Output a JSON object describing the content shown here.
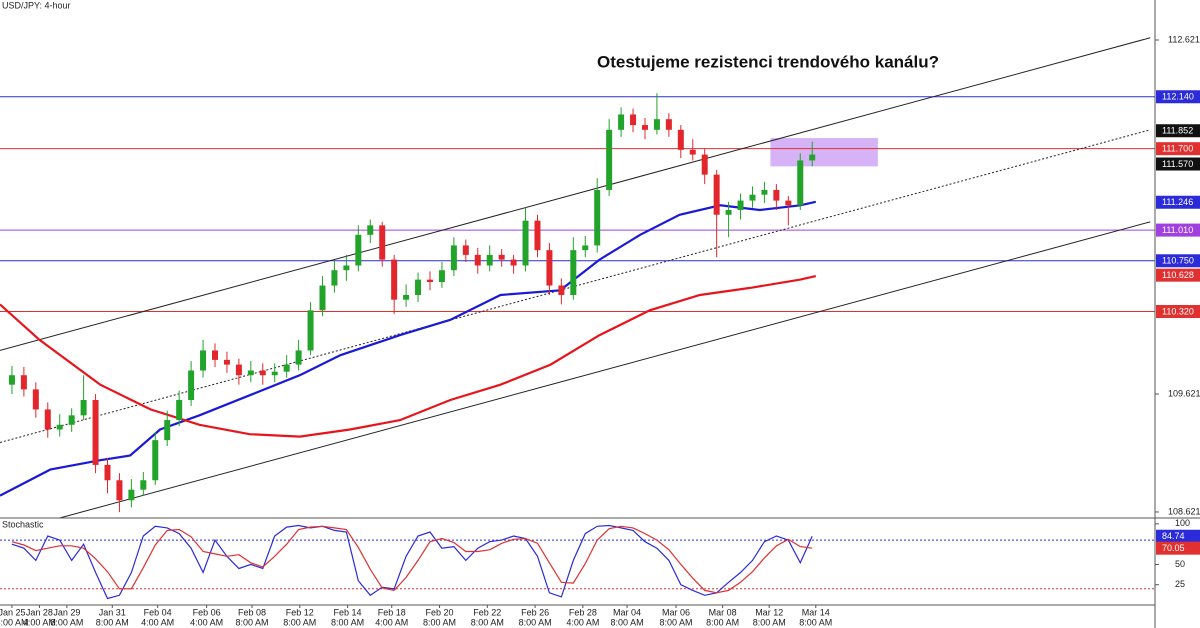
{
  "chart_data": [
    {
      "type": "candlestick",
      "title": "USD/JPY: 4-hour",
      "annotation": "Otestujeme rezistenci trendového kanálu?",
      "up_color": "#22a32a",
      "down_color": "#e3262c",
      "xlim": [
        -1,
        95.7
      ],
      "ylim": [
        108.57,
        112.96
      ],
      "yticks": [
        112.621,
        109.621,
        108.621
      ],
      "xticks": [
        {
          "value": 0,
          "label": "Jan 25",
          "time": "4:00 AM"
        },
        {
          "value": 2.3,
          "label": "Jan 28",
          "time": "4:00 AM"
        },
        {
          "value": 4.6,
          "label": "Jan 29",
          "time": "8:00 AM"
        },
        {
          "value": 8.4,
          "label": "Jan 31",
          "time": "8:00 AM"
        },
        {
          "value": 12.2,
          "label": "Feb 04",
          "time": "4:00 AM"
        },
        {
          "value": 16.3,
          "label": "Feb 06",
          "time": "4:00 AM"
        },
        {
          "value": 20.1,
          "label": "Feb 08",
          "time": "8:00 AM"
        },
        {
          "value": 24.1,
          "label": "Feb 12",
          "time": "8:00 AM"
        },
        {
          "value": 28.1,
          "label": "Feb 14",
          "time": "8:00 AM"
        },
        {
          "value": 31.8,
          "label": "Feb 18",
          "time": "4:00 AM"
        },
        {
          "value": 35.8,
          "label": "Feb 20",
          "time": "8:00 AM"
        },
        {
          "value": 39.8,
          "label": "Feb 22",
          "time": "8:00 AM"
        },
        {
          "value": 43.8,
          "label": "Feb 26",
          "time": "8:00 AM"
        },
        {
          "value": 47.8,
          "label": "Feb 28",
          "time": "4:00 AM"
        },
        {
          "value": 51.5,
          "label": "Mar 04",
          "time": "8:00 AM"
        },
        {
          "value": 55.6,
          "label": "Mar 06",
          "time": "8:00 AM"
        },
        {
          "value": 59.5,
          "label": "Mar 08",
          "time": "8:00 AM"
        },
        {
          "value": 63.4,
          "label": "Mar 12",
          "time": "8:00 AM"
        },
        {
          "value": 67.3,
          "label": "Mar 14",
          "time": "8:00 AM"
        }
      ],
      "candles": [
        [
          109.7,
          109.86,
          109.62,
          109.78
        ],
        [
          109.78,
          109.85,
          109.6,
          109.66
        ],
        [
          109.66,
          109.72,
          109.42,
          109.49
        ],
        [
          109.49,
          109.55,
          109.25,
          109.32
        ],
        [
          109.32,
          109.45,
          109.26,
          109.36
        ],
        [
          109.36,
          109.5,
          109.3,
          109.44
        ],
        [
          109.44,
          109.78,
          109.4,
          109.57
        ],
        [
          109.57,
          109.62,
          108.95,
          109.02
        ],
        [
          109.02,
          109.08,
          108.78,
          108.89
        ],
        [
          108.89,
          108.95,
          108.62,
          108.72
        ],
        [
          108.72,
          108.9,
          108.66,
          108.81
        ],
        [
          108.81,
          108.96,
          108.76,
          108.89
        ],
        [
          108.89,
          109.3,
          108.85,
          109.23
        ],
        [
          109.23,
          109.48,
          109.18,
          109.4
        ],
        [
          109.4,
          109.65,
          109.35,
          109.57
        ],
        [
          109.57,
          109.9,
          109.52,
          109.82
        ],
        [
          109.82,
          110.08,
          109.76,
          109.99
        ],
        [
          109.99,
          110.05,
          109.85,
          109.91
        ],
        [
          109.91,
          109.98,
          109.8,
          109.87
        ],
        [
          109.87,
          109.92,
          109.7,
          109.78
        ],
        [
          109.78,
          109.9,
          109.72,
          109.82
        ],
        [
          109.82,
          109.88,
          109.7,
          109.78
        ],
        [
          109.78,
          109.88,
          109.72,
          109.81
        ],
        [
          109.81,
          109.95,
          109.76,
          109.87
        ],
        [
          109.87,
          110.08,
          109.82,
          109.99
        ],
        [
          109.99,
          110.4,
          109.95,
          110.33
        ],
        [
          110.33,
          110.62,
          110.28,
          110.54
        ],
        [
          110.54,
          110.75,
          110.48,
          110.67
        ],
        [
          110.67,
          110.8,
          110.58,
          110.71
        ],
        [
          110.71,
          111.05,
          110.66,
          110.97
        ],
        [
          110.97,
          111.1,
          110.9,
          111.05
        ],
        [
          111.05,
          111.08,
          110.7,
          110.76
        ],
        [
          110.76,
          110.8,
          110.3,
          110.42
        ],
        [
          110.42,
          110.55,
          110.36,
          110.46
        ],
        [
          110.46,
          110.65,
          110.4,
          110.59
        ],
        [
          110.59,
          110.66,
          110.5,
          110.57
        ],
        [
          110.57,
          110.74,
          110.52,
          110.67
        ],
        [
          110.67,
          110.95,
          110.62,
          110.88
        ],
        [
          110.88,
          110.93,
          110.74,
          110.8
        ],
        [
          110.8,
          110.86,
          110.64,
          110.71
        ],
        [
          110.71,
          110.88,
          110.66,
          110.8
        ],
        [
          110.8,
          110.85,
          110.7,
          110.76
        ],
        [
          110.76,
          110.8,
          110.64,
          110.71
        ],
        [
          110.71,
          111.2,
          110.66,
          111.09
        ],
        [
          111.09,
          111.14,
          110.78,
          110.84
        ],
        [
          110.84,
          110.9,
          110.46,
          110.54
        ],
        [
          110.54,
          110.6,
          110.38,
          110.46
        ],
        [
          110.46,
          110.95,
          110.42,
          110.84
        ],
        [
          110.84,
          110.96,
          110.78,
          110.88
        ],
        [
          110.88,
          111.45,
          110.82,
          111.35
        ],
        [
          111.35,
          111.95,
          111.3,
          111.86
        ],
        [
          111.86,
          112.05,
          111.8,
          111.99
        ],
        [
          111.99,
          112.04,
          111.84,
          111.9
        ],
        [
          111.9,
          111.96,
          111.78,
          111.86
        ],
        [
          111.86,
          112.17,
          111.82,
          111.95
        ],
        [
          111.95,
          112.0,
          111.8,
          111.86
        ],
        [
          111.86,
          111.9,
          111.62,
          111.69
        ],
        [
          111.69,
          111.78,
          111.6,
          111.65
        ],
        [
          111.65,
          111.7,
          111.4,
          111.48
        ],
        [
          111.48,
          111.52,
          110.78,
          111.14
        ],
        [
          111.14,
          111.25,
          110.95,
          111.18
        ],
        [
          111.18,
          111.32,
          111.1,
          111.26
        ],
        [
          111.26,
          111.38,
          111.2,
          111.31
        ],
        [
          111.31,
          111.42,
          111.24,
          111.35
        ],
        [
          111.35,
          111.4,
          111.18,
          111.26
        ],
        [
          111.26,
          111.3,
          111.05,
          111.22
        ],
        [
          111.22,
          111.66,
          111.18,
          111.6
        ],
        [
          111.6,
          111.76,
          111.55,
          111.65
        ]
      ],
      "series": [
        {
          "color": "#1a1ad6",
          "x": [
            -1,
            3.2,
            7.4,
            9.9,
            12.4,
            15.7,
            19.9,
            24.1,
            27.5,
            32.5,
            36.7,
            40.9,
            45.9,
            49.2,
            52.6,
            55.9,
            59.3,
            62.6,
            66,
            67.3
          ],
          "values": [
            108.76,
            108.98,
            109.06,
            109.1,
            109.32,
            109.44,
            109.61,
            109.78,
            109.95,
            110.12,
            110.25,
            110.46,
            110.5,
            110.76,
            110.97,
            111.14,
            111.22,
            111.18,
            111.22,
            111.25
          ]
        },
        {
          "color": "#e8141c",
          "x": [
            -1,
            2.3,
            7.4,
            11.6,
            15.7,
            19.9,
            24.1,
            28.3,
            32.5,
            36.7,
            40.9,
            45.1,
            49.2,
            53.4,
            57.6,
            61.8,
            66,
            67.3
          ],
          "values": [
            110.38,
            110.08,
            109.7,
            109.49,
            109.36,
            109.28,
            109.26,
            109.32,
            109.4,
            109.57,
            109.7,
            109.87,
            110.12,
            110.33,
            110.46,
            110.52,
            110.59,
            110.62
          ]
        }
      ],
      "trendlines": [
        {
          "x": [
            -1,
            95.3
          ],
          "y": [
            109.99,
            112.64
          ],
          "color": "#222222",
          "dash": false
        },
        {
          "x": [
            -1,
            95.3
          ],
          "y": [
            109.21,
            111.86
          ],
          "color": "#222222",
          "dash": true
        },
        {
          "x": [
            4.0,
            95.3
          ],
          "y": [
            108.57,
            111.08
          ],
          "color": "#222222",
          "dash": false
        }
      ],
      "levels": [
        {
          "value": 112.14,
          "color": "#2b2bd9"
        },
        {
          "value": 111.7,
          "color": "#e03030"
        },
        {
          "value": 111.01,
          "color": "#a040e0"
        },
        {
          "value": 110.75,
          "color": "#2b2bd9"
        },
        {
          "value": 110.32,
          "color": "#e03030"
        }
      ],
      "zone": {
        "x": [
          63.5,
          72.5
        ],
        "y": [
          111.55,
          111.79
        ],
        "color": "#cfa6f5"
      },
      "price_labels": [
        {
          "value": 112.14,
          "label": "112.140",
          "color": "#2b2bd9"
        },
        {
          "value": 111.852,
          "color": "#111111"
        },
        {
          "value": 111.7,
          "label": "111.700",
          "color": "#e03030"
        },
        {
          "value": 111.57,
          "label": "111.570",
          "color": "#111111"
        },
        {
          "value": 111.246,
          "color": "#2b2bd9"
        },
        {
          "value": 111.01,
          "label": "111.010",
          "color": "#a040e0"
        },
        {
          "value": 110.75,
          "label": "110.750",
          "color": "#2b2bd9"
        },
        {
          "value": 110.628,
          "color": "#e03030"
        },
        {
          "value": 110.32,
          "label": "110.320",
          "color": "#e03030"
        }
      ]
    },
    {
      "type": "line",
      "title": "Stochastic",
      "ylim": [
        0,
        106
      ],
      "yticks": [
        100,
        50,
        25
      ],
      "levels": [
        {
          "value": 80,
          "color": "#2b2bd9"
        },
        {
          "value": 20,
          "color": "#e03030"
        }
      ],
      "series": [
        {
          "color": "#2b2bd9",
          "values": [
            75,
            70,
            55,
            85,
            80,
            55,
            75,
            40,
            8,
            12,
            40,
            85,
            97,
            95,
            88,
            70,
            40,
            80,
            60,
            45,
            50,
            45,
            85,
            96,
            98,
            95,
            97,
            92,
            90,
            30,
            12,
            22,
            20,
            60,
            85,
            90,
            70,
            72,
            55,
            70,
            78,
            80,
            85,
            82,
            60,
            15,
            10,
            55,
            88,
            97,
            98,
            95,
            92,
            78,
            70,
            55,
            25,
            18,
            12,
            15,
            28,
            40,
            55,
            78,
            85,
            80,
            52,
            84.74
          ]
        },
        {
          "color": "#e03030",
          "values": [
            78,
            74,
            67,
            70,
            73,
            73,
            70,
            57,
            41,
            20,
            20,
            46,
            74,
            92,
            93,
            84,
            66,
            63,
            60,
            62,
            52,
            47,
            60,
            75,
            93,
            96,
            97,
            95,
            93,
            71,
            44,
            21,
            18,
            34,
            55,
            78,
            82,
            77,
            66,
            66,
            68,
            76,
            81,
            82,
            76,
            52,
            28,
            27,
            51,
            80,
            94,
            97,
            95,
            88,
            80,
            68,
            50,
            33,
            18,
            15,
            18,
            28,
            41,
            58,
            73,
            81,
            72,
            70.05
          ]
        }
      ],
      "price_labels": [
        {
          "value": 84.74,
          "color": "#2b2bd9"
        },
        {
          "value": 70.05,
          "color": "#e03030"
        }
      ]
    }
  ]
}
